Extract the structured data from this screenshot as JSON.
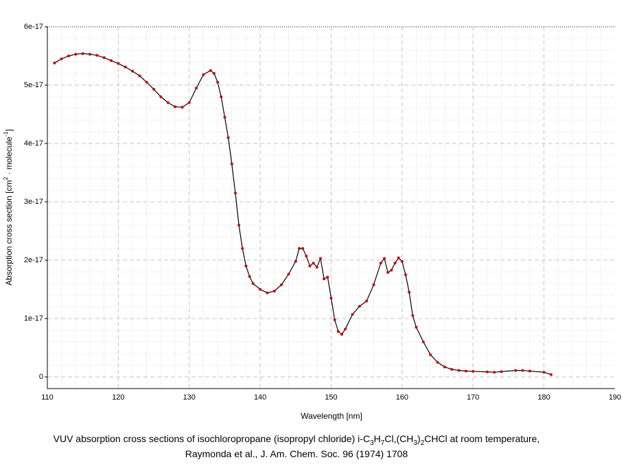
{
  "chart_data": {
    "type": "line",
    "x_label": "Wavelength [nm]",
    "y_label": [
      "Absorption cross section [cm",
      "2",
      " · molecule",
      "-1",
      "]"
    ],
    "caption": [
      [
        "VUV absorption cross sections of isochloropropane (isopropyl chloride) i-C",
        "3",
        "H",
        "7",
        "Cl,(CH",
        "3",
        ")",
        "2",
        "CHCl at room temperature,"
      ],
      [
        "Raymonda et al., J. Am. Chem. Soc. 96 (1974) 1708"
      ]
    ],
    "xlim": [
      110,
      190
    ],
    "xticks": [
      110,
      120,
      130,
      140,
      150,
      160,
      170,
      180,
      190
    ],
    "ylim": [
      -2e-18,
      6e-17
    ],
    "yticks": [
      0,
      {
        "value": 1e-17,
        "label": "1e-17"
      },
      {
        "value": 2e-17,
        "label": "2e-17"
      },
      {
        "value": 3e-17,
        "label": "3e-17"
      },
      {
        "value": 4e-17,
        "label": "4e-17"
      },
      {
        "value": 5e-17,
        "label": "5e-17"
      },
      {
        "value": 6e-17,
        "label": "6e-17"
      }
    ],
    "grid": true,
    "color": "#000000",
    "marker_color": "#cc0000",
    "x": [
      111,
      112,
      113,
      114,
      115,
      116,
      117,
      118,
      119,
      120,
      121,
      122,
      123,
      124,
      125,
      126,
      127,
      128,
      129,
      130,
      131,
      132,
      133,
      133.5,
      134,
      134.5,
      135,
      135.5,
      136,
      136.5,
      137,
      137.5,
      138,
      138.5,
      139,
      140,
      141,
      142,
      143,
      144,
      145,
      145.5,
      146,
      146.5,
      147,
      147.5,
      148,
      148.5,
      149,
      149.5,
      150,
      150.5,
      151,
      151.5,
      152,
      153,
      154,
      155,
      156,
      157,
      157.5,
      158,
      158.5,
      159,
      159.5,
      160,
      160.5,
      161,
      161.5,
      162,
      163,
      164,
      165,
      166,
      167,
      168,
      169,
      170,
      172,
      173,
      174,
      176,
      177,
      178,
      180,
      181
    ],
    "values": [
      5.38e-17,
      5.45e-17,
      5.5e-17,
      5.53e-17,
      5.54e-17,
      5.53e-17,
      5.51e-17,
      5.47e-17,
      5.42e-17,
      5.37e-17,
      5.31e-17,
      5.24e-17,
      5.16e-17,
      5.05e-17,
      4.93e-17,
      4.8e-17,
      4.7e-17,
      4.63e-17,
      4.62e-17,
      4.7e-17,
      4.95e-17,
      5.18e-17,
      5.25e-17,
      5.2e-17,
      5.05e-17,
      4.8e-17,
      4.45e-17,
      4.1e-17,
      3.65e-17,
      3.15e-17,
      2.6e-17,
      2.2e-17,
      1.9e-17,
      1.72e-17,
      1.6e-17,
      1.5e-17,
      1.44e-17,
      1.47e-17,
      1.58e-17,
      1.76e-17,
      1.98e-17,
      2.2e-17,
      2.2e-17,
      2.07e-17,
      1.9e-17,
      1.95e-17,
      1.88e-17,
      2.03e-17,
      1.68e-17,
      1.71e-17,
      1.35e-17,
      9.8e-18,
      7.8e-18,
      7.3e-18,
      8.2e-18,
      1.07e-17,
      1.21e-17,
      1.3e-17,
      1.58e-17,
      1.95e-17,
      2.03e-17,
      1.79e-17,
      1.83e-17,
      1.95e-17,
      2.04e-17,
      1.98e-17,
      1.75e-17,
      1.45e-17,
      1.05e-17,
      8.5e-18,
      6e-18,
      3.8e-18,
      2.5e-18,
      1.7e-18,
      1.3e-18,
      1.1e-18,
      1e-18,
      9.5e-19,
      8.5e-19,
      8e-19,
      9e-19,
      1.1e-18,
      1.1e-18,
      1e-18,
      8e-19,
      4e-19
    ]
  }
}
